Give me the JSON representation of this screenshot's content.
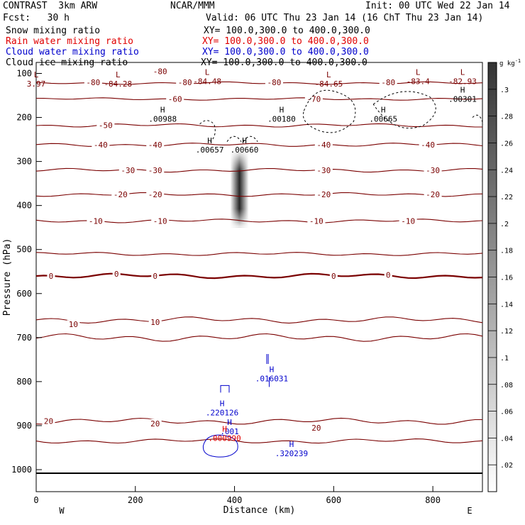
{
  "header": {
    "experiment": "CONTRAST",
    "model": "3km ARW",
    "org": "NCAR/MMM",
    "init": "Init: 00 UTC Wed 22 Jan 14",
    "fcst_label": "Fcst:",
    "fcst_value": "30 h",
    "valid": "Valid: 06 UTC Thu 23 Jan 14 (16 ChT Thu 23 Jan 14)"
  },
  "fields": [
    {
      "name": "Snow mixing ratio",
      "xy": "XY= 100.0,300.0 to 400.0,300.0",
      "color": "#000000"
    },
    {
      "name": "Rain water mixing ratio",
      "xy": "XY= 100.0,300.0 to 400.0,300.0",
      "color": "#e00000"
    },
    {
      "name": "Cloud water mixing ratio",
      "xy": "XY= 100.0,300.0 to 400.0,300.0",
      "color": "#0000cc"
    },
    {
      "name": "Cloud ice mixing ratio",
      "xy": "XY= 100.0,300.0 to 400.0,300.0",
      "color": "#000000"
    }
  ],
  "chart_data": {
    "type": "cross-section",
    "xlabel": "Distance (km)",
    "ylabel": "Pressure (hPa)",
    "xlim": [
      0,
      900
    ],
    "ylim": [
      1050,
      75
    ],
    "xticks": [
      0,
      200,
      400,
      600,
      800
    ],
    "yticks": [
      100,
      200,
      300,
      400,
      500,
      600,
      700,
      800,
      900,
      1000
    ],
    "west_label": "W",
    "east_label": "E",
    "colorbar": {
      "unit": "g kg",
      "exponent": "-1",
      "range": [
        0,
        0.32
      ],
      "ticks": [
        "0.02",
        "0.04",
        "0.06",
        "0.08",
        "0.1",
        "0.12",
        "0.14",
        "0.16",
        "0.18",
        "0.2",
        "0.22",
        "0.24",
        "0.26",
        "0.28",
        "0.3"
      ],
      "tick_values": [
        0.02,
        0.04,
        0.06,
        0.08,
        0.1,
        0.12,
        0.14,
        0.16,
        0.18,
        0.2,
        0.22,
        0.24,
        0.26,
        0.28,
        0.3
      ],
      "tick_labels": [
        ".02",
        ".04",
        ".06",
        ".08",
        ".1",
        ".12",
        ".14",
        ".16",
        ".18",
        ".2",
        ".22",
        ".24",
        ".26",
        ".28",
        ".3"
      ]
    },
    "temperature_contour_color": "#7a0000",
    "temperature_contours": [
      {
        "label": "20",
        "p": 935,
        "wobble": 4
      },
      {
        "label": "20",
        "p": 890,
        "wobble": 5
      },
      {
        "label": "10",
        "p": 700,
        "wobble": 6
      },
      {
        "label": "10",
        "p": 660,
        "wobble": 5
      },
      {
        "label": "0",
        "p": 560,
        "wobble": 4,
        "bold": true
      },
      {
        "label": "",
        "p": 510,
        "wobble": 3
      },
      {
        "label": "-10",
        "p": 435,
        "wobble": 3
      },
      {
        "label": "-20",
        "p": 375,
        "wobble": 3
      },
      {
        "label": "-30",
        "p": 320,
        "wobble": 3
      },
      {
        "label": "-40",
        "p": 262,
        "wobble": 3
      },
      {
        "label": "-50",
        "p": 218,
        "wobble": 3
      },
      {
        "label": "-70",
        "p": 158,
        "wobble": 2
      },
      {
        "label": "-80",
        "p": 122,
        "wobble": 2
      }
    ],
    "contour_labels": [
      {
        "text": "-80",
        "x": 250,
        "p": 95
      },
      {
        "text": "-80",
        "x": 115,
        "p": 120
      },
      {
        "text": "-80",
        "x": 300,
        "p": 120
      },
      {
        "text": "-80",
        "x": 480,
        "p": 120
      },
      {
        "text": "-80",
        "x": 710,
        "p": 120
      },
      {
        "text": "-70",
        "x": 560,
        "p": 158
      },
      {
        "text": "-60",
        "x": 280,
        "p": 158
      },
      {
        "text": "-50",
        "x": 140,
        "p": 218
      },
      {
        "text": "-40",
        "x": 130,
        "p": 262
      },
      {
        "text": "-40",
        "x": 240,
        "p": 262
      },
      {
        "text": "-40",
        "x": 580,
        "p": 262
      },
      {
        "text": "-40",
        "x": 790,
        "p": 262
      },
      {
        "text": "-30",
        "x": 185,
        "p": 320
      },
      {
        "text": "-30",
        "x": 240,
        "p": 320
      },
      {
        "text": "-30",
        "x": 580,
        "p": 320
      },
      {
        "text": "-30",
        "x": 800,
        "p": 320
      },
      {
        "text": "-20",
        "x": 170,
        "p": 375
      },
      {
        "text": "-20",
        "x": 240,
        "p": 375
      },
      {
        "text": "-20",
        "x": 580,
        "p": 375
      },
      {
        "text": "-20",
        "x": 800,
        "p": 375
      },
      {
        "text": "-10",
        "x": 120,
        "p": 435
      },
      {
        "text": "-10",
        "x": 250,
        "p": 435
      },
      {
        "text": "-10",
        "x": 565,
        "p": 435
      },
      {
        "text": "-10",
        "x": 750,
        "p": 435
      },
      {
        "text": "0",
        "x": 30,
        "p": 560
      },
      {
        "text": "0",
        "x": 162,
        "p": 555
      },
      {
        "text": "0",
        "x": 240,
        "p": 560
      },
      {
        "text": "0",
        "x": 600,
        "p": 560
      },
      {
        "text": "0",
        "x": 710,
        "p": 558
      },
      {
        "text": "10",
        "x": 75,
        "p": 670
      },
      {
        "text": "10",
        "x": 240,
        "p": 665
      },
      {
        "text": "20",
        "x": 25,
        "p": 890
      },
      {
        "text": "20",
        "x": 240,
        "p": 895
      },
      {
        "text": "20",
        "x": 565,
        "p": 905
      }
    ],
    "extrema": [
      {
        "mark": "L",
        "text": "3.97",
        "x": 0,
        "p": 115,
        "color": "#7a0000"
      },
      {
        "mark": "L",
        "text": "-84.28",
        "x": 165,
        "p": 115,
        "color": "#7a0000"
      },
      {
        "mark": "L",
        "text": "-84.48",
        "x": 345,
        "p": 110,
        "color": "#7a0000"
      },
      {
        "mark": "L",
        "text": "-84.65",
        "x": 590,
        "p": 115,
        "color": "#7a0000"
      },
      {
        "mark": "L",
        "text": "-83.4",
        "x": 770,
        "p": 110,
        "color": "#7a0000"
      },
      {
        "mark": "L",
        "text": "-82.93",
        "x": 860,
        "p": 110,
        "color": "#7a0000"
      },
      {
        "mark": "H",
        "text": ".00988",
        "x": 255,
        "p": 195,
        "color": "#000000"
      },
      {
        "mark": "H",
        "text": ".00180",
        "x": 495,
        "p": 195,
        "color": "#000000"
      },
      {
        "mark": "H",
        "text": ".00665",
        "x": 700,
        "p": 195,
        "color": "#000000"
      },
      {
        "mark": "H",
        "text": ".00301",
        "x": 860,
        "p": 150,
        "color": "#000000"
      },
      {
        "mark": "H",
        "text": ".00657",
        "x": 350,
        "p": 265,
        "color": "#000000"
      },
      {
        "mark": "H",
        "text": ".00660",
        "x": 420,
        "p": 265,
        "color": "#000000"
      },
      {
        "mark": "H",
        "text": ".016031",
        "x": 475,
        "p": 785,
        "color": "#0000cc"
      },
      {
        "mark": "H",
        "text": ".220126",
        "x": 375,
        "p": 862,
        "color": "#0000cc"
      },
      {
        "mark": "H",
        "text": ".001",
        "x": 390,
        "p": 905,
        "color": "#0000cc"
      },
      {
        "mark": "H",
        "text": ".000990",
        "x": 380,
        "p": 920,
        "color": "#e00000"
      },
      {
        "mark": "H",
        "text": ".320239",
        "x": 515,
        "p": 955,
        "color": "#0000cc"
      }
    ],
    "snow_plume": {
      "x_center": 410,
      "p_top": 280,
      "p_bottom": 450,
      "max_value": 0.32
    }
  }
}
